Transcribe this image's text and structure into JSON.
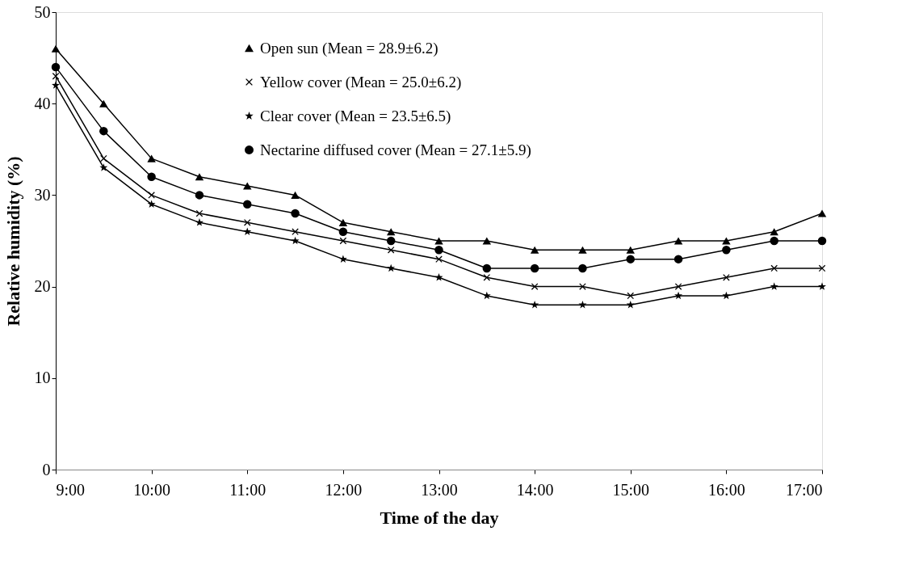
{
  "chart_data": {
    "type": "line",
    "xlabel": "Time of the day",
    "ylabel": "Relative humidity (%)",
    "x": [
      9,
      9.5,
      10,
      10.5,
      11,
      11.5,
      12,
      12.5,
      13,
      13.5,
      14,
      14.5,
      15,
      15.5,
      16,
      16.5,
      17
    ],
    "xlim": [
      9,
      17
    ],
    "xticks": [
      {
        "value": 9,
        "label": "9:00"
      },
      {
        "value": 10,
        "label": "10:00"
      },
      {
        "value": 11,
        "label": "11:00"
      },
      {
        "value": 12,
        "label": "12:00"
      },
      {
        "value": 13,
        "label": "13:00"
      },
      {
        "value": 14,
        "label": "14:00"
      },
      {
        "value": 15,
        "label": "15:00"
      },
      {
        "value": 16,
        "label": "16:00"
      },
      {
        "value": 17,
        "label": "17:00"
      }
    ],
    "ylim": [
      0,
      50
    ],
    "yticks": [
      0,
      10,
      20,
      30,
      40,
      50
    ],
    "grid": false,
    "legend": "top",
    "series": [
      {
        "name": "Open sun (Mean = 28.9±6.2)",
        "color": "#000000",
        "marker": "triangle",
        "values": [
          46,
          40,
          34,
          32,
          31,
          30,
          27,
          26,
          25,
          25,
          24,
          24,
          24,
          25,
          25,
          26,
          28
        ]
      },
      {
        "name": "Yellow cover (Mean = 25.0±6.2)",
        "color": "#000000",
        "marker": "cross",
        "values": [
          43,
          34,
          30,
          28,
          27,
          26,
          25,
          24,
          23,
          21,
          20,
          20,
          19,
          20,
          21,
          22,
          22
        ]
      },
      {
        "name": "Clear cover (Mean = 23.5±6.5)",
        "color": "#000000",
        "marker": "star",
        "values": [
          42,
          33,
          29,
          27,
          26,
          25,
          23,
          22,
          21,
          19,
          18,
          18,
          18,
          19,
          19,
          20,
          20
        ]
      },
      {
        "name": "Nectarine diffused cover (Mean = 27.1±5.9)",
        "color": "#000000",
        "marker": "circle",
        "values": [
          44,
          37,
          32,
          30,
          29,
          28,
          26,
          25,
          24,
          22,
          22,
          22,
          23,
          23,
          24,
          25,
          25
        ]
      }
    ]
  }
}
